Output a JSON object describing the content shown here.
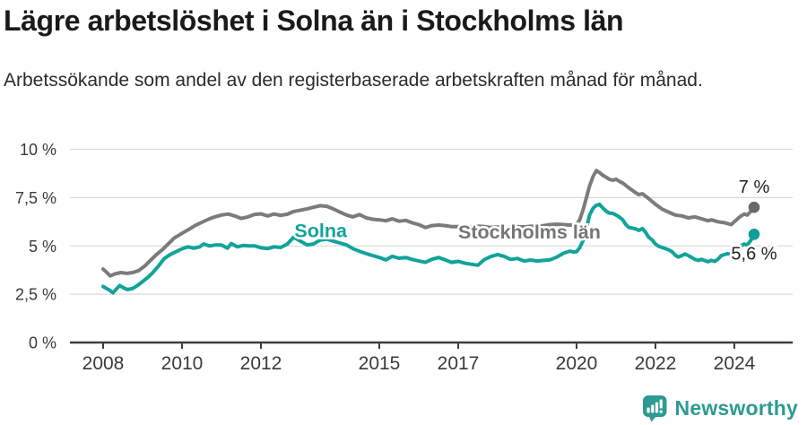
{
  "header": {
    "title": "Lägre arbetslöshet i Solna än i Stockholms län",
    "subtitle": "Arbetssökande som andel av den registerbaserade arbetskraften månad för månad."
  },
  "footer": {
    "brand": "Newsworthy",
    "logo_icon": "bar-chart-speech-bubble-icon",
    "brand_color": "#2c9b92"
  },
  "chart_data": {
    "type": "line",
    "title": "Lägre arbetslöshet i Solna än i Stockholms län",
    "subtitle": "Arbetssökande som andel av den registerbaserade arbetskraften månad för månad.",
    "unit": "%",
    "grid": true,
    "legend_position": "inline-labels",
    "xlim": [
      2007.2,
      2025.5
    ],
    "ylim": [
      0,
      10
    ],
    "y_axis": {
      "ticks": [
        {
          "value": 10,
          "label": "10 %"
        },
        {
          "value": 7.5,
          "label": "7,5 %"
        },
        {
          "value": 5,
          "label": "5 %"
        },
        {
          "value": 2.5,
          "label": "2,5 %"
        },
        {
          "value": 0,
          "label": "0 %"
        }
      ]
    },
    "x_axis": {
      "ticks": [
        {
          "value": 2008,
          "label": "2008"
        },
        {
          "value": 2010,
          "label": "2010"
        },
        {
          "value": 2012,
          "label": "2012"
        },
        {
          "value": 2015,
          "label": "2015"
        },
        {
          "value": 2017,
          "label": "2017"
        },
        {
          "value": 2020,
          "label": "2020"
        },
        {
          "value": 2022,
          "label": "2022"
        },
        {
          "value": 2024,
          "label": "2024"
        }
      ]
    },
    "series": [
      {
        "id": "stockholms-lan",
        "name": "Stockholms län",
        "color": "#7b7b7b",
        "dot_color": "#696969",
        "label_color": "#757575",
        "label_x": 2017.0,
        "label_y": 5.71,
        "end_label": "7 %",
        "end_label_side": "above",
        "data": [
          [
            2008.0,
            3.8
          ],
          [
            2008.08,
            3.65
          ],
          [
            2008.18,
            3.45
          ],
          [
            2008.3,
            3.55
          ],
          [
            2008.45,
            3.62
          ],
          [
            2008.6,
            3.58
          ],
          [
            2008.75,
            3.62
          ],
          [
            2008.9,
            3.72
          ],
          [
            2009.05,
            3.95
          ],
          [
            2009.2,
            4.25
          ],
          [
            2009.35,
            4.55
          ],
          [
            2009.5,
            4.8
          ],
          [
            2009.65,
            5.1
          ],
          [
            2009.8,
            5.4
          ],
          [
            2010.0,
            5.65
          ],
          [
            2010.17,
            5.85
          ],
          [
            2010.33,
            6.05
          ],
          [
            2010.5,
            6.22
          ],
          [
            2010.67,
            6.38
          ],
          [
            2010.83,
            6.5
          ],
          [
            2011.0,
            6.6
          ],
          [
            2011.17,
            6.65
          ],
          [
            2011.33,
            6.55
          ],
          [
            2011.5,
            6.42
          ],
          [
            2011.67,
            6.5
          ],
          [
            2011.83,
            6.62
          ],
          [
            2012.0,
            6.66
          ],
          [
            2012.17,
            6.55
          ],
          [
            2012.33,
            6.65
          ],
          [
            2012.5,
            6.58
          ],
          [
            2012.67,
            6.64
          ],
          [
            2012.83,
            6.78
          ],
          [
            2013.0,
            6.85
          ],
          [
            2013.17,
            6.92
          ],
          [
            2013.33,
            7.0
          ],
          [
            2013.5,
            7.08
          ],
          [
            2013.67,
            7.05
          ],
          [
            2013.83,
            6.92
          ],
          [
            2014.0,
            6.75
          ],
          [
            2014.17,
            6.6
          ],
          [
            2014.33,
            6.5
          ],
          [
            2014.5,
            6.62
          ],
          [
            2014.67,
            6.45
          ],
          [
            2014.83,
            6.38
          ],
          [
            2015.0,
            6.35
          ],
          [
            2015.17,
            6.3
          ],
          [
            2015.33,
            6.4
          ],
          [
            2015.5,
            6.28
          ],
          [
            2015.67,
            6.32
          ],
          [
            2015.83,
            6.2
          ],
          [
            2016.0,
            6.1
          ],
          [
            2016.17,
            5.95
          ],
          [
            2016.33,
            6.05
          ],
          [
            2016.5,
            6.08
          ],
          [
            2016.67,
            6.05
          ],
          [
            2016.83,
            6.0
          ],
          [
            2017.0,
            6.0
          ],
          [
            2017.17,
            6.05
          ],
          [
            2017.33,
            5.98
          ],
          [
            2017.5,
            6.02
          ],
          [
            2017.67,
            6.0
          ],
          [
            2017.83,
            5.95
          ],
          [
            2018.0,
            5.98
          ],
          [
            2018.17,
            5.92
          ],
          [
            2018.33,
            5.96
          ],
          [
            2018.5,
            6.0
          ],
          [
            2018.67,
            5.98
          ],
          [
            2018.83,
            6.02
          ],
          [
            2019.0,
            6.0
          ],
          [
            2019.17,
            6.05
          ],
          [
            2019.33,
            6.1
          ],
          [
            2019.5,
            6.12
          ],
          [
            2019.67,
            6.1
          ],
          [
            2019.83,
            6.08
          ],
          [
            2020.0,
            6.1
          ],
          [
            2020.08,
            6.35
          ],
          [
            2020.17,
            6.9
          ],
          [
            2020.25,
            7.5
          ],
          [
            2020.33,
            8.1
          ],
          [
            2020.42,
            8.6
          ],
          [
            2020.5,
            8.9
          ],
          [
            2020.58,
            8.8
          ],
          [
            2020.67,
            8.65
          ],
          [
            2020.75,
            8.55
          ],
          [
            2020.83,
            8.45
          ],
          [
            2020.92,
            8.4
          ],
          [
            2021.0,
            8.45
          ],
          [
            2021.08,
            8.35
          ],
          [
            2021.17,
            8.25
          ],
          [
            2021.33,
            8.0
          ],
          [
            2021.5,
            7.75
          ],
          [
            2021.58,
            7.65
          ],
          [
            2021.67,
            7.7
          ],
          [
            2021.83,
            7.45
          ],
          [
            2022.0,
            7.15
          ],
          [
            2022.17,
            6.9
          ],
          [
            2022.33,
            6.75
          ],
          [
            2022.5,
            6.6
          ],
          [
            2022.67,
            6.55
          ],
          [
            2022.83,
            6.45
          ],
          [
            2023.0,
            6.5
          ],
          [
            2023.17,
            6.4
          ],
          [
            2023.33,
            6.3
          ],
          [
            2023.42,
            6.35
          ],
          [
            2023.58,
            6.25
          ],
          [
            2023.75,
            6.2
          ],
          [
            2023.92,
            6.1
          ],
          [
            2024.0,
            6.25
          ],
          [
            2024.08,
            6.4
          ],
          [
            2024.17,
            6.55
          ],
          [
            2024.25,
            6.65
          ],
          [
            2024.33,
            6.6
          ],
          [
            2024.42,
            6.8
          ],
          [
            2024.5,
            7.0
          ]
        ]
      },
      {
        "id": "solna",
        "name": "Solna",
        "color": "#12a39a",
        "dot_color": "#0d9e95",
        "label_color": "#12a39a",
        "label_x": 2012.85,
        "label_y": 5.78,
        "end_label": "5,6 %",
        "end_label_side": "below",
        "data": [
          [
            2008.0,
            2.9
          ],
          [
            2008.08,
            2.8
          ],
          [
            2008.17,
            2.7
          ],
          [
            2008.25,
            2.57
          ],
          [
            2008.33,
            2.75
          ],
          [
            2008.42,
            2.95
          ],
          [
            2008.5,
            2.85
          ],
          [
            2008.62,
            2.74
          ],
          [
            2008.75,
            2.8
          ],
          [
            2008.87,
            2.95
          ],
          [
            2009.0,
            3.15
          ],
          [
            2009.12,
            3.35
          ],
          [
            2009.25,
            3.6
          ],
          [
            2009.4,
            3.95
          ],
          [
            2009.55,
            4.35
          ],
          [
            2009.7,
            4.55
          ],
          [
            2009.85,
            4.7
          ],
          [
            2010.0,
            4.85
          ],
          [
            2010.15,
            4.95
          ],
          [
            2010.3,
            4.88
          ],
          [
            2010.45,
            4.95
          ],
          [
            2010.55,
            5.1
          ],
          [
            2010.7,
            5.0
          ],
          [
            2010.85,
            5.05
          ],
          [
            2011.0,
            5.05
          ],
          [
            2011.15,
            4.88
          ],
          [
            2011.25,
            5.12
          ],
          [
            2011.4,
            4.95
          ],
          [
            2011.55,
            5.02
          ],
          [
            2011.7,
            5.0
          ],
          [
            2011.85,
            5.0
          ],
          [
            2012.0,
            4.9
          ],
          [
            2012.17,
            4.86
          ],
          [
            2012.33,
            4.95
          ],
          [
            2012.5,
            4.92
          ],
          [
            2012.67,
            5.1
          ],
          [
            2012.83,
            5.45
          ],
          [
            2013.0,
            5.25
          ],
          [
            2013.17,
            5.05
          ],
          [
            2013.33,
            5.1
          ],
          [
            2013.5,
            5.3
          ],
          [
            2013.67,
            5.35
          ],
          [
            2013.83,
            5.25
          ],
          [
            2014.0,
            5.15
          ],
          [
            2014.17,
            5.05
          ],
          [
            2014.33,
            4.86
          ],
          [
            2014.5,
            4.72
          ],
          [
            2014.67,
            4.6
          ],
          [
            2014.83,
            4.5
          ],
          [
            2015.0,
            4.4
          ],
          [
            2015.17,
            4.28
          ],
          [
            2015.33,
            4.46
          ],
          [
            2015.5,
            4.36
          ],
          [
            2015.67,
            4.4
          ],
          [
            2015.83,
            4.3
          ],
          [
            2016.0,
            4.22
          ],
          [
            2016.17,
            4.15
          ],
          [
            2016.33,
            4.3
          ],
          [
            2016.5,
            4.4
          ],
          [
            2016.67,
            4.28
          ],
          [
            2016.83,
            4.15
          ],
          [
            2017.0,
            4.2
          ],
          [
            2017.17,
            4.1
          ],
          [
            2017.33,
            4.05
          ],
          [
            2017.5,
            4.0
          ],
          [
            2017.67,
            4.3
          ],
          [
            2017.83,
            4.45
          ],
          [
            2018.0,
            4.55
          ],
          [
            2018.17,
            4.45
          ],
          [
            2018.33,
            4.3
          ],
          [
            2018.5,
            4.35
          ],
          [
            2018.67,
            4.22
          ],
          [
            2018.83,
            4.27
          ],
          [
            2019.0,
            4.22
          ],
          [
            2019.17,
            4.25
          ],
          [
            2019.33,
            4.28
          ],
          [
            2019.5,
            4.42
          ],
          [
            2019.67,
            4.62
          ],
          [
            2019.83,
            4.73
          ],
          [
            2019.92,
            4.68
          ],
          [
            2020.0,
            4.7
          ],
          [
            2020.08,
            4.9
          ],
          [
            2020.17,
            5.3
          ],
          [
            2020.25,
            5.9
          ],
          [
            2020.33,
            6.6
          ],
          [
            2020.42,
            6.95
          ],
          [
            2020.5,
            7.1
          ],
          [
            2020.58,
            7.15
          ],
          [
            2020.67,
            6.95
          ],
          [
            2020.75,
            6.8
          ],
          [
            2020.83,
            6.7
          ],
          [
            2020.92,
            6.68
          ],
          [
            2021.0,
            6.6
          ],
          [
            2021.08,
            6.5
          ],
          [
            2021.17,
            6.35
          ],
          [
            2021.25,
            6.1
          ],
          [
            2021.33,
            5.95
          ],
          [
            2021.42,
            5.92
          ],
          [
            2021.5,
            5.88
          ],
          [
            2021.58,
            5.8
          ],
          [
            2021.67,
            5.9
          ],
          [
            2021.75,
            5.7
          ],
          [
            2021.83,
            5.45
          ],
          [
            2021.92,
            5.3
          ],
          [
            2022.0,
            5.1
          ],
          [
            2022.08,
            4.98
          ],
          [
            2022.17,
            4.92
          ],
          [
            2022.25,
            4.86
          ],
          [
            2022.33,
            4.8
          ],
          [
            2022.42,
            4.7
          ],
          [
            2022.5,
            4.52
          ],
          [
            2022.58,
            4.42
          ],
          [
            2022.67,
            4.5
          ],
          [
            2022.75,
            4.58
          ],
          [
            2022.83,
            4.5
          ],
          [
            2022.92,
            4.4
          ],
          [
            2023.0,
            4.3
          ],
          [
            2023.08,
            4.25
          ],
          [
            2023.17,
            4.3
          ],
          [
            2023.25,
            4.24
          ],
          [
            2023.33,
            4.18
          ],
          [
            2023.42,
            4.25
          ],
          [
            2023.5,
            4.2
          ],
          [
            2023.58,
            4.3
          ],
          [
            2023.67,
            4.5
          ],
          [
            2023.75,
            4.55
          ],
          [
            2023.83,
            4.6
          ],
          [
            2023.92,
            4.55
          ],
          [
            2024.0,
            4.7
          ],
          [
            2024.08,
            4.9
          ],
          [
            2024.17,
            5.0
          ],
          [
            2024.25,
            5.1
          ],
          [
            2024.33,
            5.05
          ],
          [
            2024.42,
            5.3
          ],
          [
            2024.5,
            5.6
          ]
        ]
      }
    ]
  }
}
